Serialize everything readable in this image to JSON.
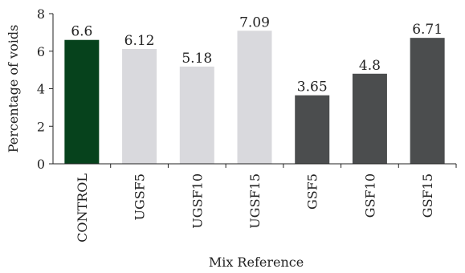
{
  "chart_data": {
    "type": "bar",
    "categories": [
      "CONTROL",
      "UGSF5",
      "UGSF10",
      "UGSF15",
      "GSF5",
      "GSF10",
      "GSF15"
    ],
    "values": [
      6.6,
      6.12,
      5.18,
      7.09,
      3.65,
      4.8,
      6.71
    ],
    "value_labels": [
      "6.6",
      "6.12",
      "5.18",
      "7.09",
      "3.65",
      "4.8",
      "6.71"
    ],
    "bar_colors": [
      "#06421c",
      "#d9d9dd",
      "#d9d9dd",
      "#d9d9dd",
      "#4b4d4e",
      "#4b4d4e",
      "#4b4d4e"
    ],
    "xlabel": "Mix Reference",
    "ylabel": "Percentage of voids",
    "ylim": [
      0,
      8
    ],
    "yticks": [
      0,
      2,
      4,
      6,
      8
    ],
    "grid": false,
    "legend": "none"
  }
}
